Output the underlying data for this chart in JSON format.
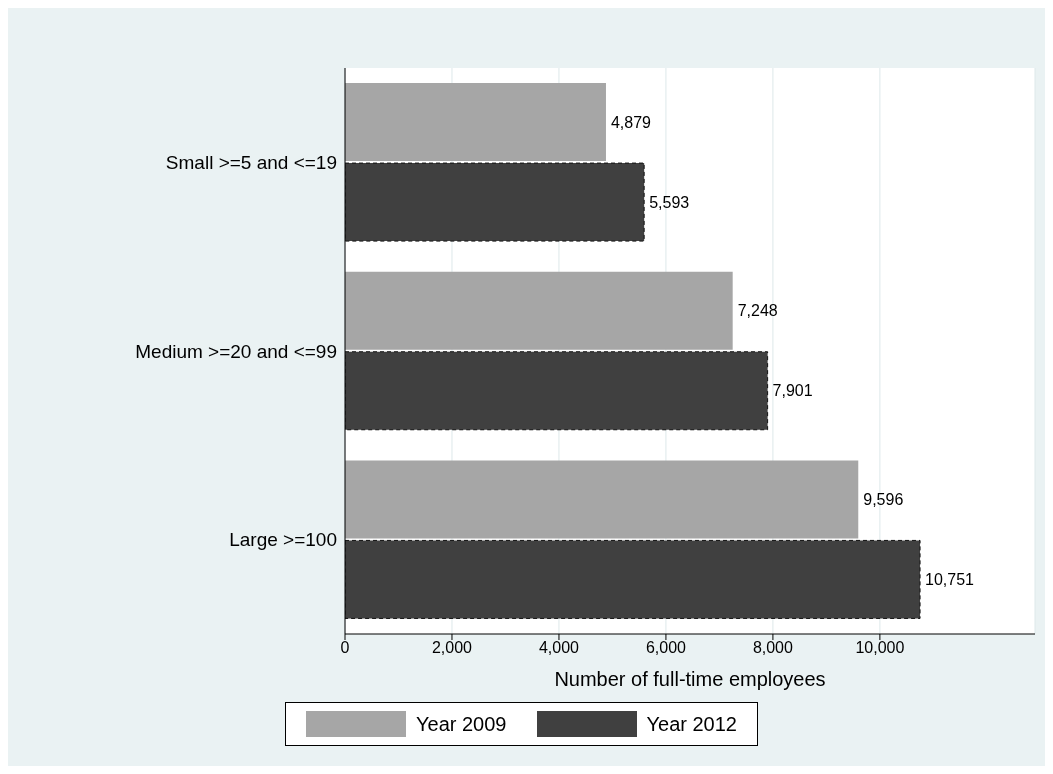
{
  "chart_data": {
    "type": "bar",
    "orientation": "horizontal",
    "xlabel": "Number of full-time employees",
    "categories": [
      "Small >=5 and <=19",
      "Medium >=20 and <=99",
      "Large >=100"
    ],
    "series": [
      {
        "name": "Year 2009",
        "color": "#a6a6a6",
        "values": [
          4879,
          7248,
          9596
        ],
        "value_labels": [
          "4,879",
          "7,248",
          "9,596"
        ]
      },
      {
        "name": "Year 2012",
        "color": "#404040",
        "values": [
          5593,
          7901,
          10751
        ],
        "value_labels": [
          "5,593",
          "7,901",
          "10,751"
        ]
      }
    ],
    "xlim": [
      0,
      12900
    ],
    "xticks": [
      0,
      {
        "value": 2000,
        "label": "2,000"
      },
      {
        "value": 4000,
        "label": "4,000"
      },
      {
        "value": 6000,
        "label": "6,000"
      },
      {
        "value": 8000,
        "label": "8,000"
      },
      {
        "value": 10000,
        "label": "10,000"
      }
    ],
    "grid": "x",
    "legend": "bottom"
  }
}
